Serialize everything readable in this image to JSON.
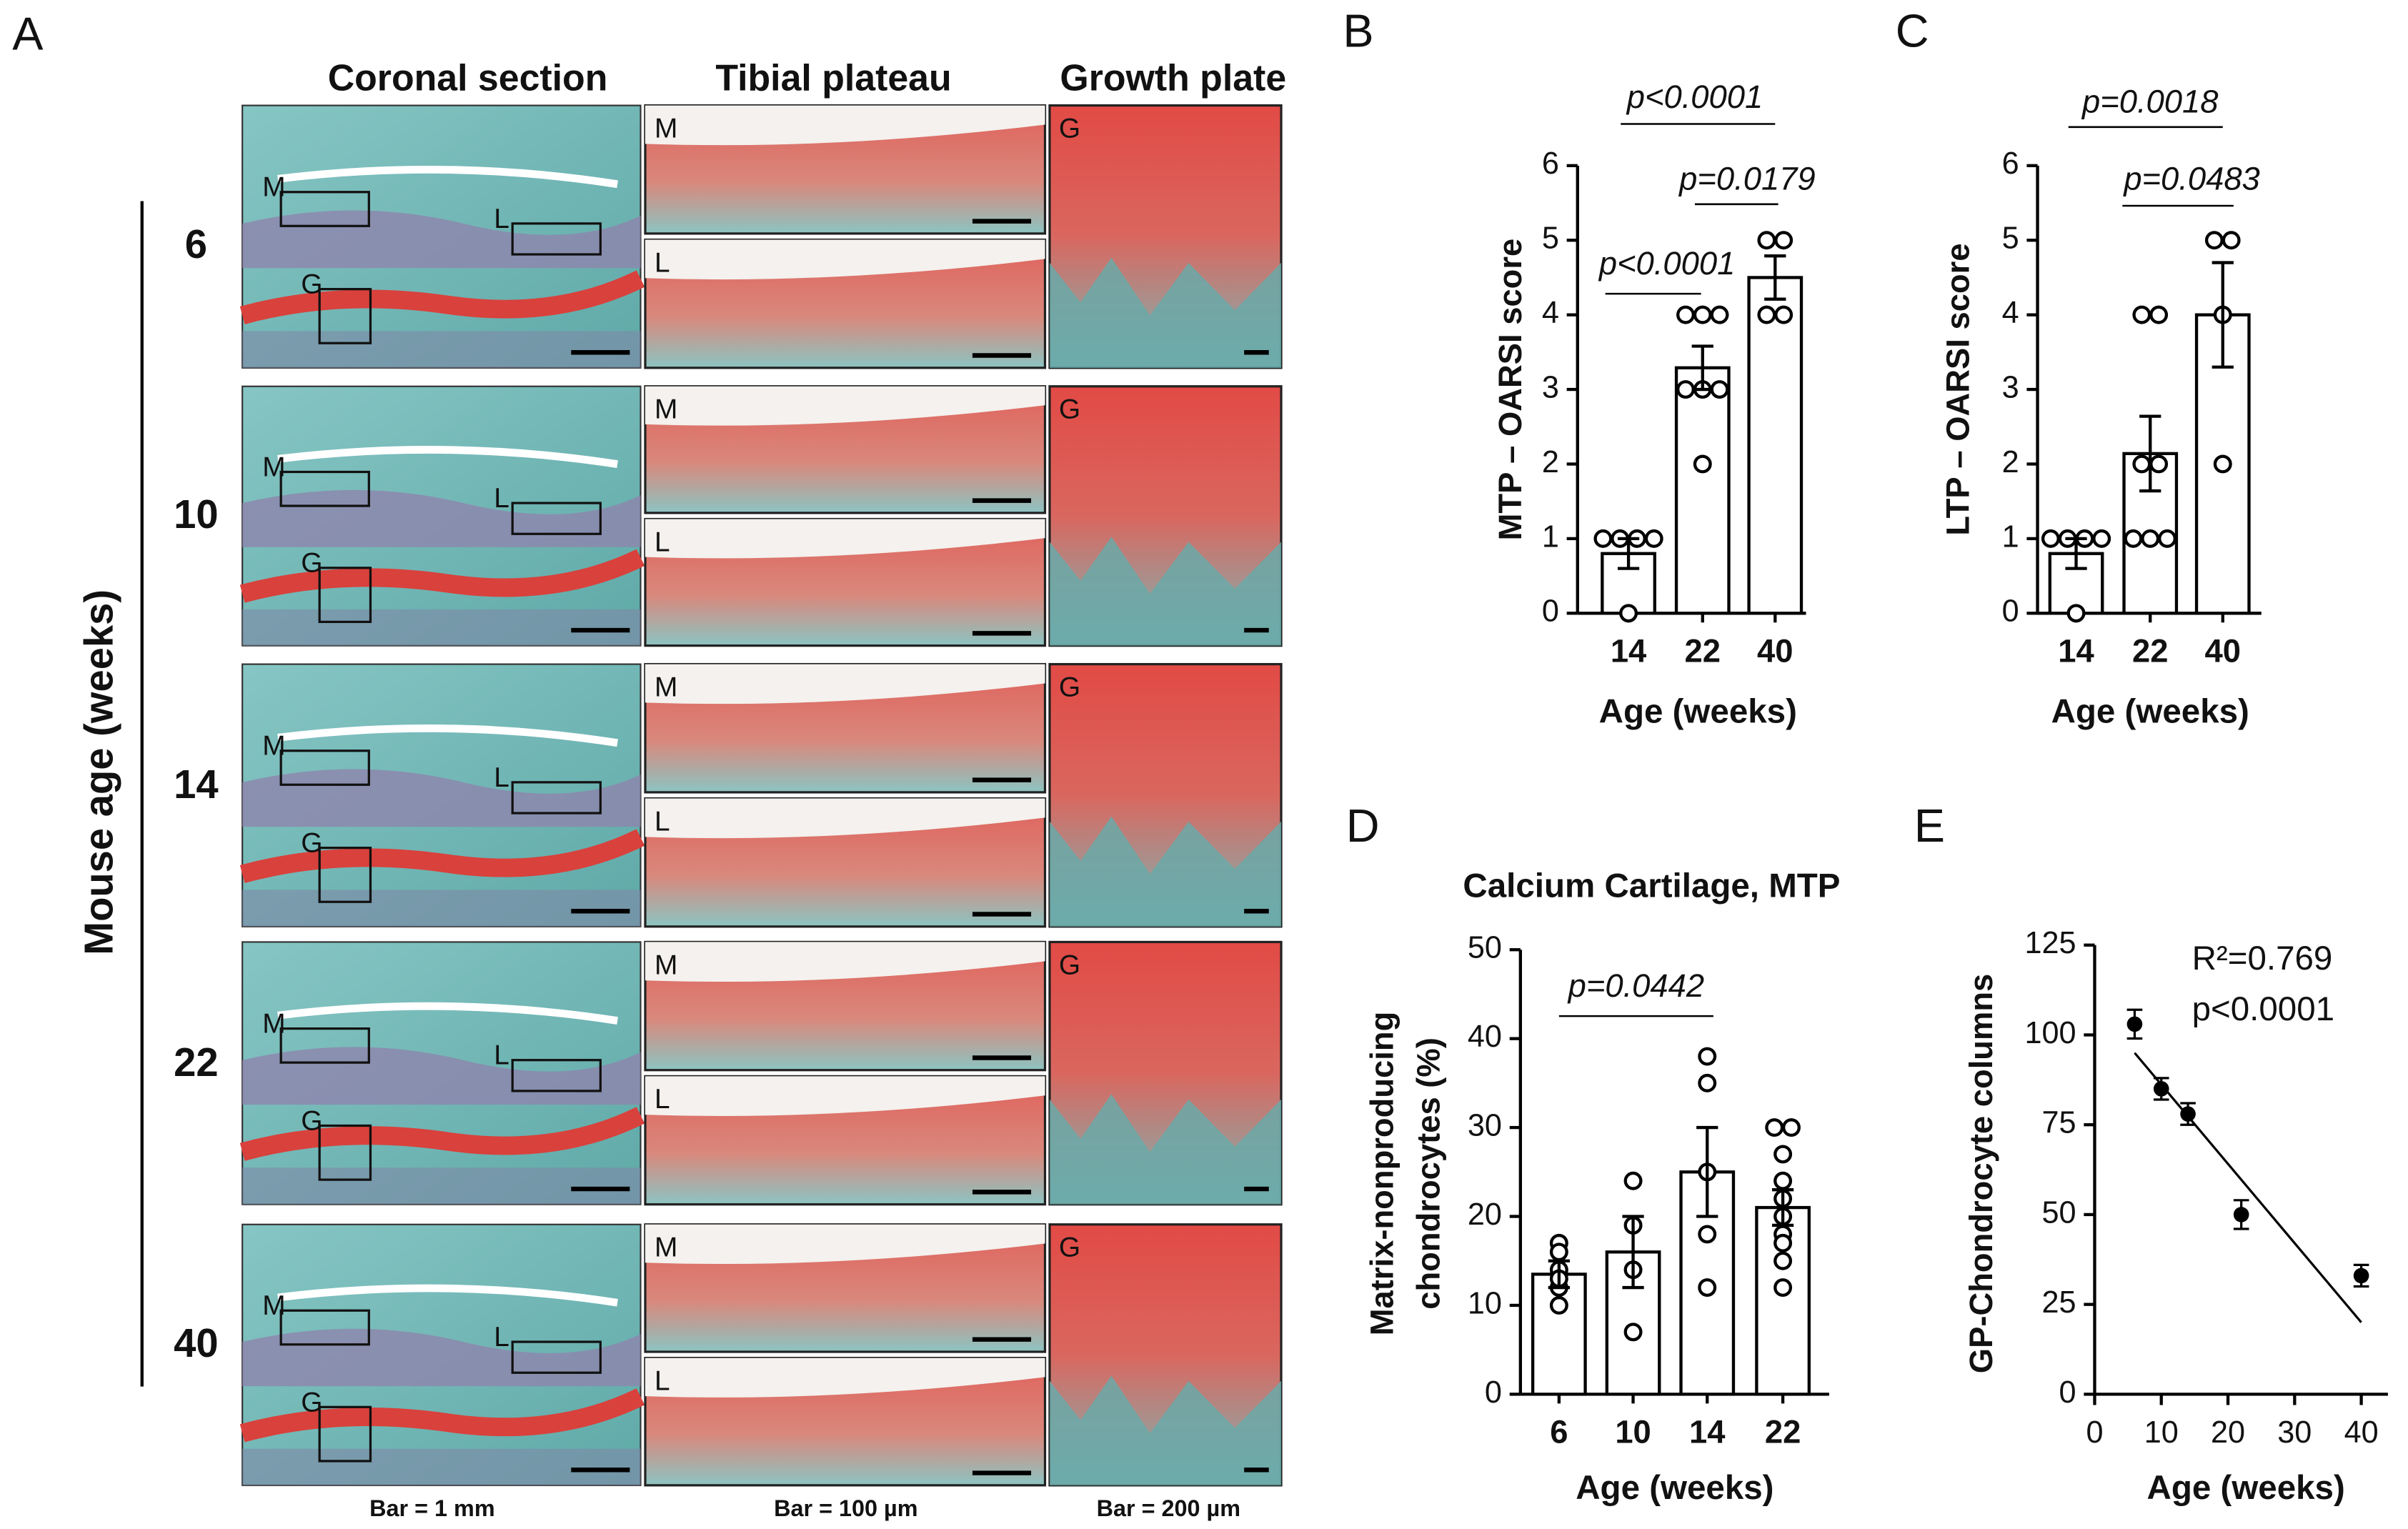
{
  "panel_a": {
    "label": "A",
    "columns": [
      "Coronal section",
      "Tibial plateau",
      "Growth plate"
    ],
    "y_label": "Mouse age (weeks)",
    "rows": [
      "6",
      "10",
      "14",
      "22",
      "40"
    ],
    "region_labels": [
      "M",
      "L",
      "G"
    ],
    "scale_bars": [
      "Bar = 1 mm",
      "Bar = 100 µm",
      "Bar = 200 µm"
    ]
  },
  "chart_data": [
    {
      "type": "bar",
      "panel_label": "B",
      "y_label": "MTP – OARSI score",
      "x_label": "Age (weeks)",
      "color": "#000000",
      "categories": [
        "14",
        "22",
        "40"
      ],
      "values": [
        0.8,
        3.29,
        4.5
      ],
      "errors": [
        0.2,
        0.29,
        0.29
      ],
      "points": [
        [
          1,
          1,
          1,
          1,
          0
        ],
        [
          4,
          4,
          4,
          3,
          3,
          3,
          2
        ],
        [
          5,
          5,
          4,
          4
        ]
      ],
      "ylim": [
        0,
        6
      ],
      "yticks": [
        0,
        1,
        2,
        3,
        4,
        5,
        6
      ],
      "annotations": [
        "p<0.0001",
        "p=0.0179",
        "p<0.0001"
      ]
    },
    {
      "type": "bar",
      "panel_label": "C",
      "y_label": "LTP – OARSI score",
      "x_label": "Age (weeks)",
      "color": "#000000",
      "categories": [
        "14",
        "22",
        "40"
      ],
      "values": [
        0.8,
        2.14,
        4
      ],
      "errors": [
        0.2,
        0.5,
        0.7
      ],
      "points": [
        [
          1,
          1,
          1,
          1,
          0
        ],
        [
          4,
          4,
          2,
          2,
          1,
          1,
          1
        ],
        [
          5,
          5,
          4,
          2
        ]
      ],
      "ylim": [
        0,
        6
      ],
      "yticks": [
        0,
        1,
        2,
        3,
        4,
        5,
        6
      ],
      "annotations": [
        "p=0.0018",
        "p=0.0483"
      ]
    },
    {
      "type": "bar",
      "panel_label": "D",
      "title": "Calcium Cartilage, MTP",
      "y_label": [
        "Matrix-nonproducing",
        "chondrocytes (%)"
      ],
      "x_label": "Age (weeks)",
      "color": "#000000",
      "categories": [
        "6",
        "10",
        "14",
        "22"
      ],
      "values": [
        13.5,
        16,
        25,
        21
      ],
      "errors": [
        1.5,
        4,
        5,
        2
      ],
      "points": [
        [
          17,
          16,
          14,
          12,
          10,
          13
        ],
        [
          24,
          19,
          14,
          7
        ],
        [
          38,
          35,
          25,
          18,
          12
        ],
        [
          30,
          30,
          27,
          24,
          22,
          20,
          18,
          17,
          15,
          12
        ]
      ],
      "ylim": [
        0,
        50
      ],
      "yticks": [
        0,
        10,
        20,
        30,
        40,
        50
      ],
      "annotations": [
        "p=0.0442"
      ]
    },
    {
      "type": "scatter",
      "panel_label": "E",
      "y_label": "GP-Chondrocyte columns",
      "x_label": "Age (weeks)",
      "color": "#000000",
      "x": [
        6,
        10,
        14,
        22,
        40
      ],
      "y": [
        103,
        85,
        78,
        50,
        33
      ],
      "yerr": [
        4,
        3,
        3,
        4,
        3
      ],
      "fit": {
        "x": [
          6,
          40
        ],
        "y": [
          95,
          20
        ]
      },
      "xlim": [
        0,
        44
      ],
      "xticks": [
        0,
        10,
        20,
        30,
        40
      ],
      "ylim": [
        0,
        125
      ],
      "yticks": [
        0,
        25,
        50,
        75,
        100,
        125
      ],
      "annotations": [
        "R²=0.769",
        "p<0.0001"
      ]
    }
  ]
}
